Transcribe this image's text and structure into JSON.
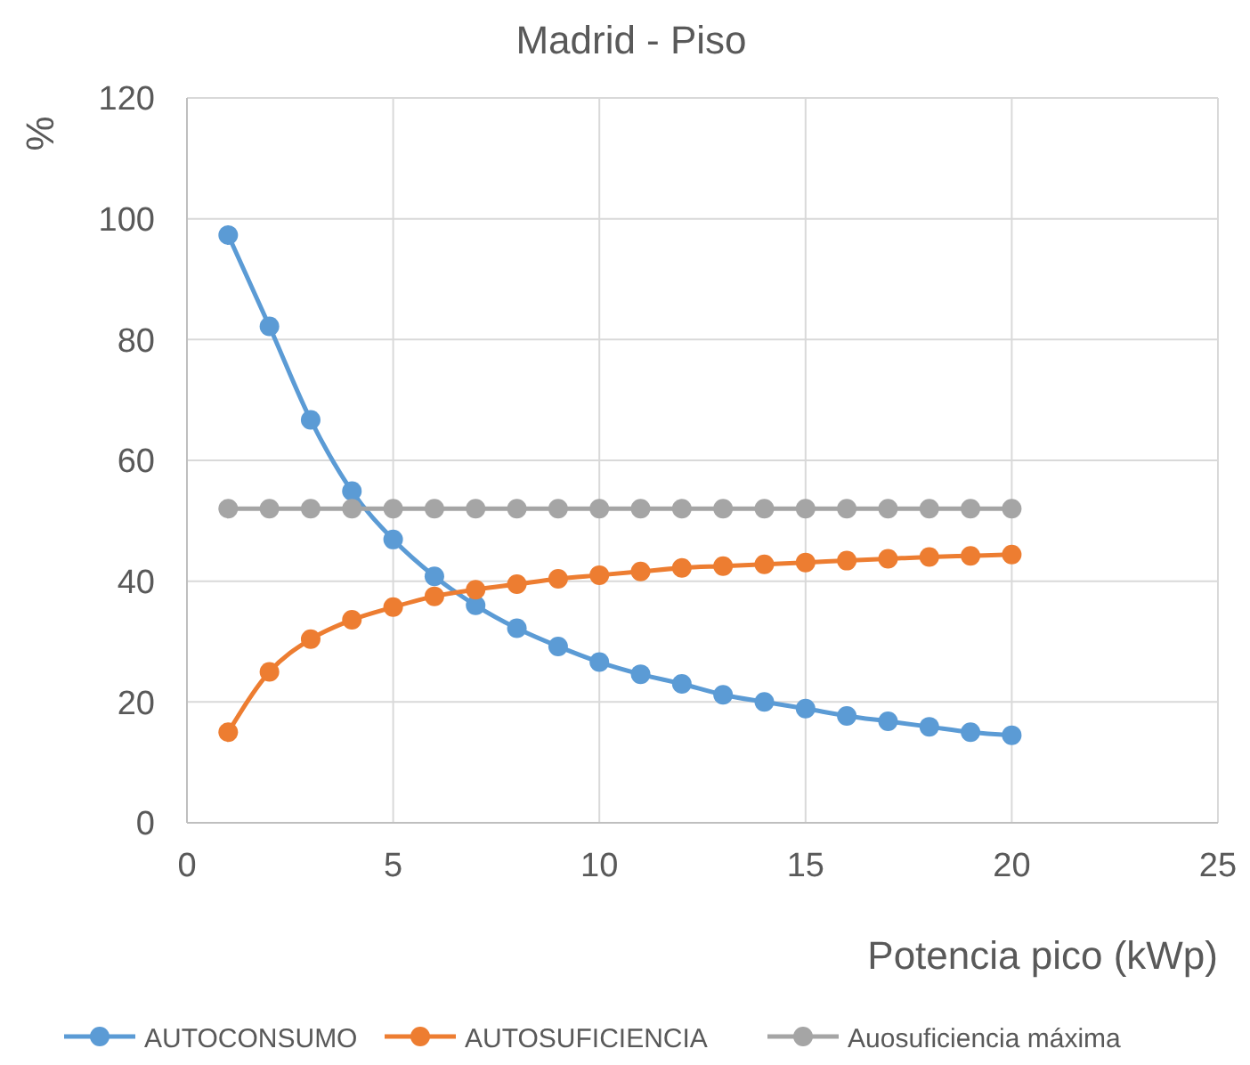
{
  "chart_data": {
    "type": "line",
    "title": "Madrid - Piso",
    "xlabel": "Potencia pico (kWp)",
    "ylabel": "%",
    "x": [
      1,
      2,
      3,
      4,
      5,
      6,
      7,
      8,
      9,
      10,
      11,
      12,
      13,
      14,
      15,
      16,
      17,
      18,
      19,
      20
    ],
    "series": [
      {
        "name": "AUTOCONSUMO",
        "color": "#5b9bd5",
        "values": [
          97.3,
          82.2,
          66.7,
          54.9,
          46.9,
          40.8,
          36,
          32.2,
          29.2,
          26.6,
          24.6,
          23,
          21.2,
          20,
          18.9,
          17.7,
          16.8,
          15.9,
          15,
          14.5
        ]
      },
      {
        "name": "AUTOSUFICIENCIA",
        "color": "#ed7d31",
        "values": [
          15,
          25,
          30.4,
          33.6,
          35.7,
          37.5,
          38.6,
          39.5,
          40.4,
          41,
          41.6,
          42.2,
          42.5,
          42.8,
          43.1,
          43.4,
          43.7,
          44,
          44.2,
          44.4
        ]
      },
      {
        "name": "Auosuficiencia máxima",
        "color": "#a5a5a5",
        "values": [
          52,
          52,
          52,
          52,
          52,
          52,
          52,
          52,
          52,
          52,
          52,
          52,
          52,
          52,
          52,
          52,
          52,
          52,
          52,
          52
        ]
      }
    ],
    "xlim": [
      0,
      25
    ],
    "xticks": [
      0,
      5,
      10,
      15,
      20,
      25
    ],
    "ylim": [
      0,
      120
    ],
    "yticks": [
      0,
      20,
      40,
      60,
      80,
      100,
      120
    ],
    "grid": true,
    "legend": "bottom",
    "marker": "circle",
    "line_style": "solid"
  }
}
